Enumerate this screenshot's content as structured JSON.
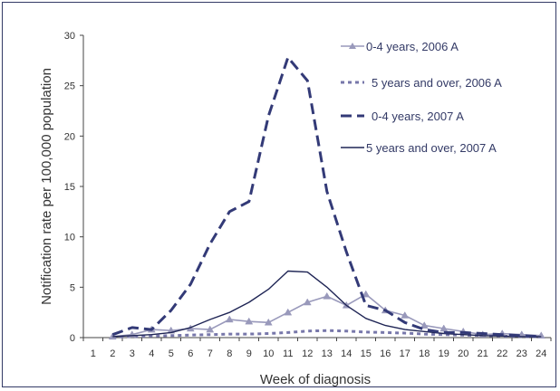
{
  "chart_data": {
    "type": "line",
    "title": "",
    "xlabel": "Week of diagnosis",
    "ylabel": "Notification rate per 100,000 population",
    "ylim": [
      0,
      30
    ],
    "yticks": [
      0,
      5,
      10,
      15,
      20,
      25,
      30
    ],
    "categories": [
      "1",
      "2",
      "3",
      "4",
      "5",
      "6",
      "7",
      "8",
      "9",
      "10",
      "11",
      "12",
      "13",
      "14",
      "15",
      "16",
      "17",
      "18",
      "19",
      "20",
      "21",
      "22",
      "23",
      "24"
    ],
    "grid": false,
    "legend": "top-right",
    "series": [
      {
        "name": "0-4 years, 2006 A",
        "style": "solid-markers",
        "color": "#9999bb",
        "x": [
          2,
          3,
          4,
          5,
          6,
          7,
          8,
          9,
          10,
          11,
          12,
          13,
          14,
          15,
          16,
          17,
          18,
          19,
          20,
          21,
          22,
          23,
          24
        ],
        "values": [
          0.1,
          0.3,
          0.8,
          0.7,
          0.9,
          0.8,
          1.8,
          1.6,
          1.5,
          2.5,
          3.5,
          4.1,
          3.2,
          4.3,
          2.7,
          2.2,
          1.2,
          0.9,
          0.6,
          0.3,
          0.4,
          0.3,
          0.2
        ]
      },
      {
        "name": "5 years and over, 2006 A",
        "style": "dotted",
        "color": "#7777aa",
        "x": [
          2,
          3,
          4,
          5,
          6,
          7,
          8,
          9,
          10,
          11,
          12,
          13,
          14,
          15,
          16,
          17,
          18,
          19,
          20,
          21,
          22,
          23,
          24
        ],
        "values": [
          0.05,
          0.1,
          0.15,
          0.2,
          0.25,
          0.3,
          0.35,
          0.35,
          0.4,
          0.5,
          0.65,
          0.7,
          0.65,
          0.55,
          0.5,
          0.45,
          0.35,
          0.3,
          0.25,
          0.2,
          0.15,
          0.1,
          0.1
        ]
      },
      {
        "name": "0-4 years, 2007 A",
        "style": "dashed",
        "color": "#333a77",
        "x": [
          2,
          3,
          4,
          5,
          6,
          7,
          8,
          9,
          10,
          11,
          12,
          13,
          14,
          15,
          16,
          17,
          18,
          19,
          20,
          21,
          22,
          23,
          24
        ],
        "values": [
          0.3,
          1.0,
          0.8,
          2.7,
          5.3,
          9.3,
          12.5,
          13.5,
          22,
          27.8,
          25.5,
          14.5,
          8.5,
          3.2,
          2.7,
          1.5,
          0.8,
          0.5,
          0.5,
          0.4,
          0.3,
          0.2,
          0.1
        ]
      },
      {
        "name": "5 years and over, 2007 A",
        "style": "solid",
        "color": "#1f2555",
        "x": [
          2,
          3,
          4,
          5,
          6,
          7,
          8,
          9,
          10,
          11,
          12,
          13,
          14,
          15,
          16,
          17,
          18,
          19,
          20,
          21,
          22,
          23,
          24
        ],
        "values": [
          0.1,
          0.2,
          0.3,
          0.5,
          1.0,
          1.8,
          2.5,
          3.5,
          4.8,
          6.6,
          6.5,
          5.0,
          3.2,
          1.9,
          1.2,
          0.8,
          0.6,
          0.4,
          0.3,
          0.2,
          0.15,
          0.1,
          0.1
        ]
      }
    ]
  }
}
